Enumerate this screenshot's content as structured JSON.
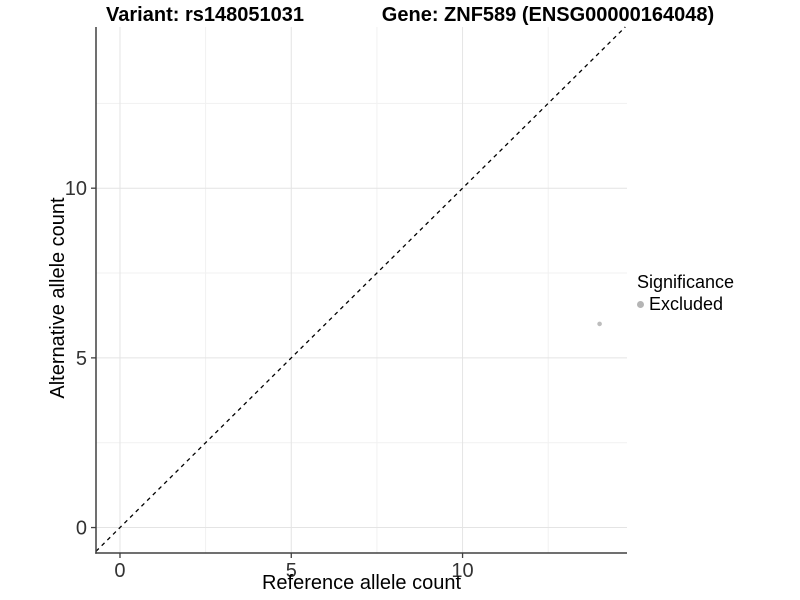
{
  "titles": {
    "variant": "Variant: rs148051031",
    "gene": "Gene: ZNF589 (ENSG00000164048)"
  },
  "chart_data": {
    "type": "scatter",
    "xlabel": "Reference allele count",
    "ylabel": "Alternative allele count",
    "xlim": [
      -0.7,
      14.8
    ],
    "ylim": [
      -0.75,
      14.75
    ],
    "xticks": [
      0,
      5,
      10
    ],
    "yticks": [
      0,
      5,
      10
    ],
    "xminor": [
      2.5,
      7.5,
      12.5
    ],
    "yminor": [
      2.5,
      7.5,
      12.5
    ],
    "grid": true,
    "points": [
      {
        "x": 14,
        "y": 6,
        "significance": "Excluded"
      }
    ],
    "reference_line": {
      "slope": 1,
      "intercept": 0,
      "style": "dashed",
      "color": "#000000"
    },
    "legend": {
      "title": "Significance",
      "position": "right",
      "items": [
        {
          "label": "Excluded",
          "color": "#b5b5b5"
        }
      ]
    },
    "colors": {
      "point": "#bdbdbd",
      "axis_line": "#404040",
      "tick_text": "#333333",
      "grid_major": "#e4e4e4",
      "grid_minor": "#f1f1f1"
    }
  }
}
